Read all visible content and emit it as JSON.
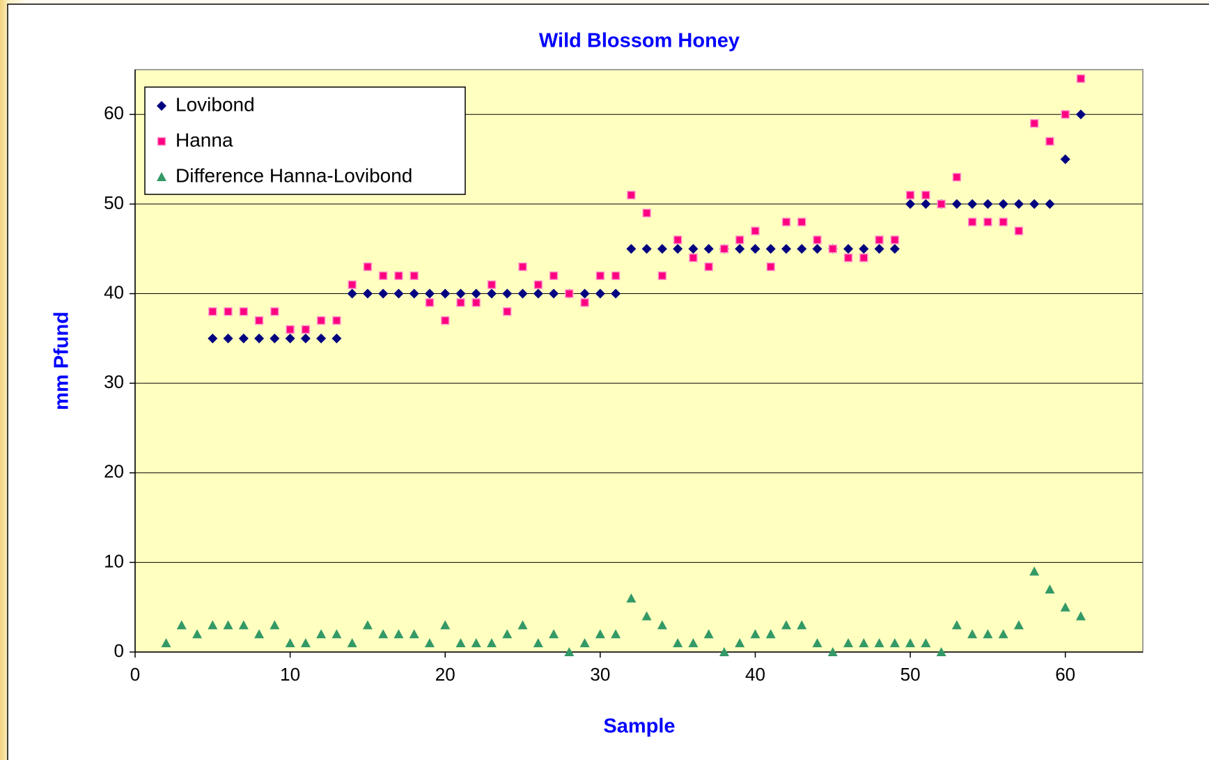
{
  "chart_data": {
    "type": "scatter",
    "title": "Wild Blossom Honey",
    "x_label": "Sample",
    "y_label": "mm Pfund",
    "xlim": [
      0,
      65
    ],
    "xticks": [
      0,
      10,
      20,
      30,
      40,
      50,
      60
    ],
    "ylim": [
      0,
      65
    ],
    "yticks": [
      0,
      10,
      20,
      30,
      40,
      50,
      60
    ],
    "grid": true,
    "legend": "upper left",
    "plot_background": "#ffffc0",
    "series": [
      {
        "name": "Lovibond",
        "color": "#000080",
        "marker": "diamond",
        "x": [
          5,
          6,
          7,
          8,
          9,
          10,
          11,
          12,
          13,
          14,
          15,
          16,
          17,
          18,
          19,
          20,
          21,
          22,
          23,
          24,
          25,
          26,
          27,
          28,
          29,
          30,
          31,
          32,
          33,
          34,
          35,
          36,
          37,
          38,
          39,
          40,
          41,
          42,
          43,
          44,
          45,
          46,
          47,
          48,
          49,
          50,
          51,
          52,
          53,
          54,
          55,
          56,
          57,
          58,
          59,
          60,
          61
        ],
        "values": [
          35,
          35,
          35,
          35,
          35,
          35,
          35,
          35,
          35,
          40,
          40,
          40,
          40,
          40,
          40,
          40,
          40,
          40,
          40,
          40,
          40,
          40,
          40,
          40,
          40,
          40,
          40,
          45,
          45,
          45,
          45,
          45,
          45,
          45,
          45,
          45,
          45,
          45,
          45,
          45,
          45,
          45,
          45,
          45,
          45,
          50,
          50,
          50,
          50,
          50,
          50,
          50,
          50,
          50,
          50,
          55,
          60
        ]
      },
      {
        "name": "Hanna",
        "color": "#ff0080",
        "marker": "square",
        "x": [
          5,
          6,
          7,
          8,
          9,
          10,
          11,
          12,
          13,
          14,
          15,
          16,
          17,
          18,
          19,
          20,
          21,
          22,
          23,
          24,
          25,
          26,
          27,
          28,
          29,
          30,
          31,
          32,
          33,
          34,
          35,
          36,
          37,
          38,
          39,
          40,
          41,
          42,
          43,
          44,
          45,
          46,
          47,
          48,
          49,
          50,
          51,
          52,
          53,
          54,
          55,
          56,
          57,
          58,
          59,
          60,
          61
        ],
        "values": [
          38,
          38,
          38,
          37,
          38,
          36,
          36,
          37,
          37,
          41,
          43,
          42,
          42,
          42,
          39,
          37,
          39,
          39,
          41,
          38,
          43,
          41,
          42,
          40,
          39,
          42,
          42,
          51,
          49,
          42,
          46,
          44,
          43,
          45,
          46,
          47,
          43,
          48,
          48,
          46,
          45,
          44,
          44,
          46,
          46,
          51,
          51,
          50,
          53,
          48,
          48,
          48,
          47,
          59,
          57,
          60,
          64
        ]
      },
      {
        "name": "Difference Hanna-Lovibond",
        "color": "#339966",
        "marker": "triangle",
        "x": [
          2,
          3,
          4,
          5,
          6,
          7,
          8,
          9,
          10,
          11,
          12,
          13,
          14,
          15,
          16,
          17,
          18,
          19,
          20,
          21,
          22,
          23,
          24,
          25,
          26,
          27,
          28,
          29,
          30,
          31,
          32,
          33,
          34,
          35,
          36,
          37,
          38,
          39,
          40,
          41,
          42,
          43,
          44,
          45,
          46,
          47,
          48,
          49,
          50,
          51,
          52,
          53,
          54,
          55,
          56,
          57,
          58,
          59,
          60,
          61
        ],
        "values": [
          1,
          3,
          2,
          3,
          3,
          3,
          2,
          3,
          1,
          1,
          2,
          2,
          1,
          3,
          2,
          2,
          2,
          1,
          3,
          1,
          1,
          1,
          2,
          3,
          1,
          2,
          0,
          1,
          2,
          2,
          6,
          4,
          3,
          1,
          1,
          2,
          0,
          1,
          2,
          2,
          3,
          3,
          1,
          0,
          1,
          1,
          1,
          1,
          1,
          1,
          0,
          3,
          2,
          2,
          2,
          3,
          9,
          7,
          5,
          4
        ]
      }
    ]
  }
}
